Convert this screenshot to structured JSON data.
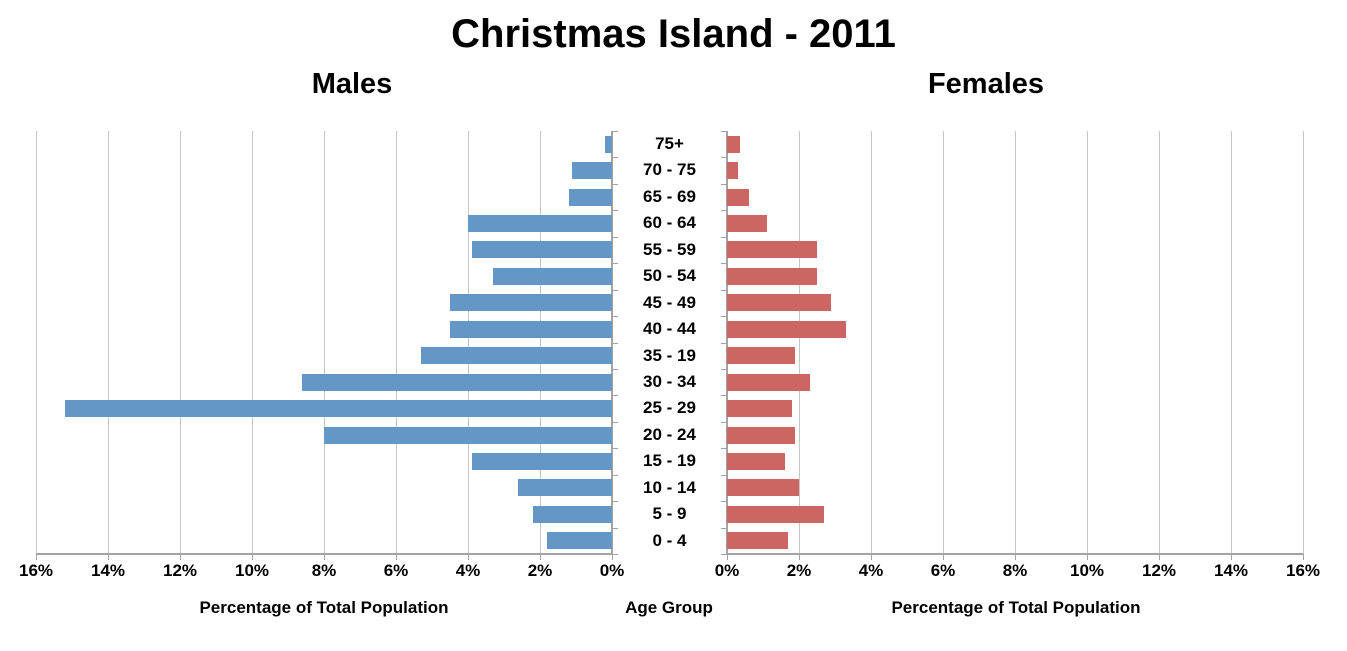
{
  "title": "Christmas Island - 2011",
  "headings": {
    "left": "Males",
    "right": "Females"
  },
  "axis_titles": {
    "left": "Percentage of Total Population",
    "center": "Age Group",
    "right": "Percentage of Total Population"
  },
  "colors": {
    "male_bar": "#6496C6",
    "female_bar": "#CC6663",
    "gridline": "#C6C6C6",
    "axis_line": "#A3A3A3",
    "text": "#000000",
    "background": "#FFFFFF"
  },
  "chart_data": {
    "type": "bar",
    "variant": "population-pyramid",
    "orientation": "horizontal",
    "title": "Christmas Island - 2011",
    "categories_top_to_bottom": [
      "75+",
      "70 - 75",
      "65 - 69",
      "60 - 64",
      "55 - 59",
      "50 - 54",
      "45 - 49",
      "40 - 44",
      "35 - 19",
      "30 - 34",
      "25 - 29",
      "20 - 24",
      "15 - 19",
      "10 - 14",
      "5 - 9",
      "0 - 4"
    ],
    "series": [
      {
        "name": "Males",
        "side": "left",
        "color": "#6496C6",
        "values_pct": [
          0.2,
          1.1,
          1.2,
          4.0,
          3.9,
          3.3,
          4.5,
          4.5,
          5.3,
          8.6,
          15.2,
          8.0,
          3.9,
          2.6,
          2.2,
          1.8
        ]
      },
      {
        "name": "Females",
        "side": "right",
        "color": "#CC6663",
        "values_pct": [
          0.35,
          0.3,
          0.6,
          1.1,
          2.5,
          2.5,
          2.9,
          3.3,
          1.9,
          2.3,
          1.8,
          1.9,
          1.6,
          2.0,
          2.7,
          1.7
        ]
      }
    ],
    "x_axis": {
      "min_pct": 0,
      "max_pct": 16,
      "tick_step_pct": 2,
      "left_tick_labels": [
        "16%",
        "14%",
        "12%",
        "10%",
        "8%",
        "6%",
        "4%",
        "2%",
        "0%"
      ],
      "right_tick_labels": [
        "0%",
        "2%",
        "4%",
        "6%",
        "8%",
        "10%",
        "12%",
        "14%",
        "16%"
      ],
      "xlabel": "Percentage of Total Population",
      "center_label": "Age Group"
    },
    "grid": true,
    "legend": "none"
  }
}
